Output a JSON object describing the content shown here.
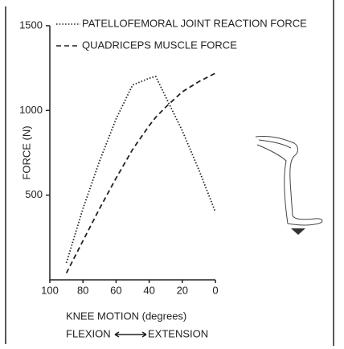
{
  "chart_data": {
    "type": "line",
    "xlabel": "KNEE MOTION (degrees)",
    "ylabel": "FORCE (N)",
    "direction_left": "FLEXION",
    "direction_right": "EXTENSION",
    "x": [
      90,
      80,
      70,
      60,
      50,
      40,
      36,
      30,
      20,
      10,
      0
    ],
    "series": [
      {
        "name": "PATELLOFEMORAL JOINT REACTION FORCE",
        "color": "#222222",
        "style": "dotted",
        "values": [
          100,
          420,
          700,
          950,
          1150,
          1190,
          1200,
          1080,
          880,
          650,
          400
        ]
      },
      {
        "name": "QUADRICEPS MUSCLE FORCE",
        "color": "#222222",
        "style": "dashed",
        "values": [
          40,
          230,
          420,
          600,
          770,
          910,
          960,
          1020,
          1110,
          1170,
          1220
        ]
      }
    ],
    "xlim": [
      100,
      0
    ],
    "xticks": [
      100,
      80,
      60,
      40,
      20,
      0
    ],
    "ylim": [
      0,
      1500
    ],
    "yticks": [
      500,
      1000,
      1500
    ],
    "grid": false
  }
}
